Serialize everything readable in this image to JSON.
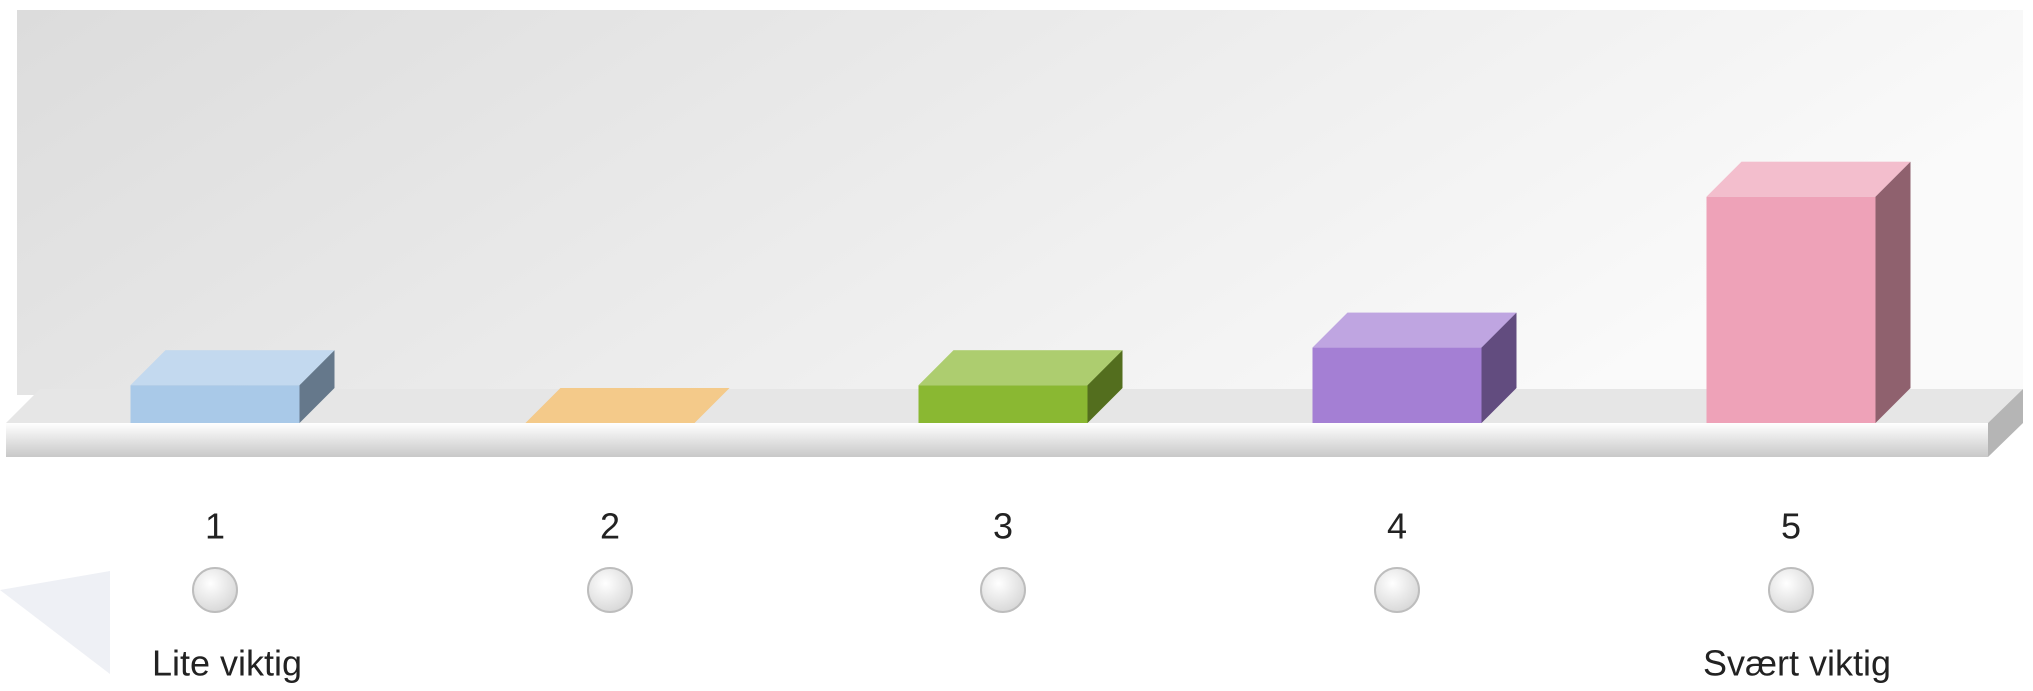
{
  "chart_data": {
    "type": "bar",
    "categories": [
      "1",
      "2",
      "3",
      "4",
      "5"
    ],
    "values": [
      1,
      0,
      1,
      2,
      6
    ],
    "colors": [
      "#a9c9e8",
      "#f0b458",
      "#8ab832",
      "#a47fd4",
      "#eea2b8"
    ],
    "low_label": "Lite viktig",
    "high_label": "Svært viktig"
  }
}
